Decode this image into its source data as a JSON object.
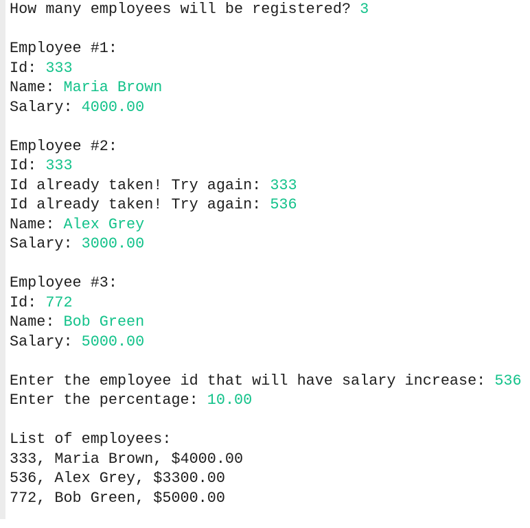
{
  "blocks": [
    [
      {
        "prompt": "How many employees will be registered? ",
        "input": "3"
      }
    ],
    [
      {
        "prompt": "Employee #1:"
      },
      {
        "prompt": "Id: ",
        "input": "333"
      },
      {
        "prompt": "Name: ",
        "input": "Maria Brown"
      },
      {
        "prompt": "Salary: ",
        "input": "4000.00"
      }
    ],
    [
      {
        "prompt": "Employee #2:"
      },
      {
        "prompt": "Id: ",
        "input": "333"
      },
      {
        "prompt": "Id already taken! Try again: ",
        "input": "333"
      },
      {
        "prompt": "Id already taken! Try again: ",
        "input": "536"
      },
      {
        "prompt": "Name: ",
        "input": "Alex Grey"
      },
      {
        "prompt": "Salary: ",
        "input": "3000.00"
      }
    ],
    [
      {
        "prompt": "Employee #3:"
      },
      {
        "prompt": "Id: ",
        "input": "772"
      },
      {
        "prompt": "Name: ",
        "input": "Bob Green"
      },
      {
        "prompt": "Salary: ",
        "input": "5000.00"
      }
    ],
    [
      {
        "prompt": "Enter the employee id that will have salary increase: ",
        "input": "536"
      },
      {
        "prompt": "Enter the percentage: ",
        "input": "10.00"
      }
    ],
    [
      {
        "prompt": "List of employees:"
      },
      {
        "prompt": "333, Maria Brown, $4000.00"
      },
      {
        "prompt": "536, Alex Grey, $3300.00"
      },
      {
        "prompt": "772, Bob Green, $5000.00"
      }
    ]
  ]
}
